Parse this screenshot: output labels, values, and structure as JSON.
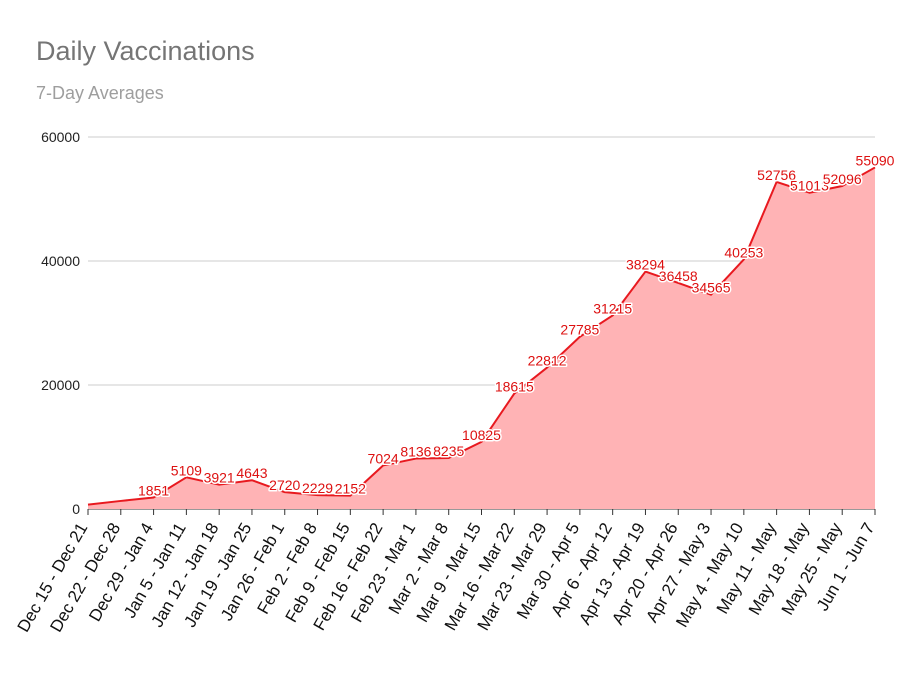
{
  "chart_data": {
    "type": "area",
    "title": "Daily Vaccinations",
    "subtitle": "7-Day Averages",
    "categories": [
      "Dec 15 - Dec 21",
      "Dec 22 - Dec 28",
      "Dec 29 - Jan 4",
      "Jan 5 - Jan 11",
      "Jan 12 - Jan 18",
      "Jan 19 - Jan 25",
      "Jan 26 - Feb 1",
      "Feb 2 - Feb 8",
      "Feb 9 - Feb 15",
      "Feb 16 - Feb 22",
      "Feb 23 - Mar 1",
      "Mar 2 - Mar 8",
      "Mar 9 - Mar 15",
      "Mar 16 - Mar 22",
      "Mar 23 - Mar 29",
      "Mar 30 - Apr 5",
      "Apr 6 - Apr 12",
      "Apr 13 - Apr 19",
      "Apr 20 - Apr 26",
      "Apr 27 - May 3",
      "May 4 - May 10",
      "May 11 - May",
      "May 18 - May",
      "May 25 - May",
      "Jun 1 - Jun 7"
    ],
    "x": [
      0,
      0.5,
      1,
      1.5,
      2,
      2.5,
      3,
      3.5,
      4,
      4.5,
      5,
      5.5,
      6,
      6.5,
      7,
      7.5,
      8,
      8.5,
      9,
      9.5,
      10,
      10.5,
      11,
      11.5,
      12,
      12.5,
      13,
      13.5,
      14,
      14.5,
      15,
      15.5,
      16,
      16.5,
      17,
      17.5,
      18,
      18.5,
      19,
      19.5,
      20,
      20.5,
      21,
      21.5,
      22,
      22.5,
      23,
      23.5,
      24
    ],
    "values": [
      700,
      1300,
      1851,
      5109,
      3921,
      4643,
      2720,
      2229,
      2152,
      7024,
      8136,
      8235,
      10825,
      18615,
      22812,
      27785,
      31215,
      38294,
      36458,
      34565,
      40253,
      52756,
      51013,
      52096,
      55090
    ],
    "data_labels": [
      "",
      "",
      "1851",
      "5109",
      "3921",
      "4643",
      "2720",
      "2229",
      "2152",
      "7024",
      "8136",
      "8235",
      "10825",
      "18615",
      "22812",
      "27785",
      "31215",
      "38294",
      "36458",
      "34565",
      "40253",
      "52756",
      "51013",
      "52096",
      "55090"
    ],
    "yticks": [
      "0",
      "20000",
      "40000",
      "60000"
    ],
    "ylim": [
      0,
      60000
    ],
    "grid": true,
    "legend": "none",
    "colors": {
      "line": "#e8191f",
      "fill": "#ffb3b5",
      "grid": "#cccccc",
      "baseline": "#333333"
    }
  }
}
